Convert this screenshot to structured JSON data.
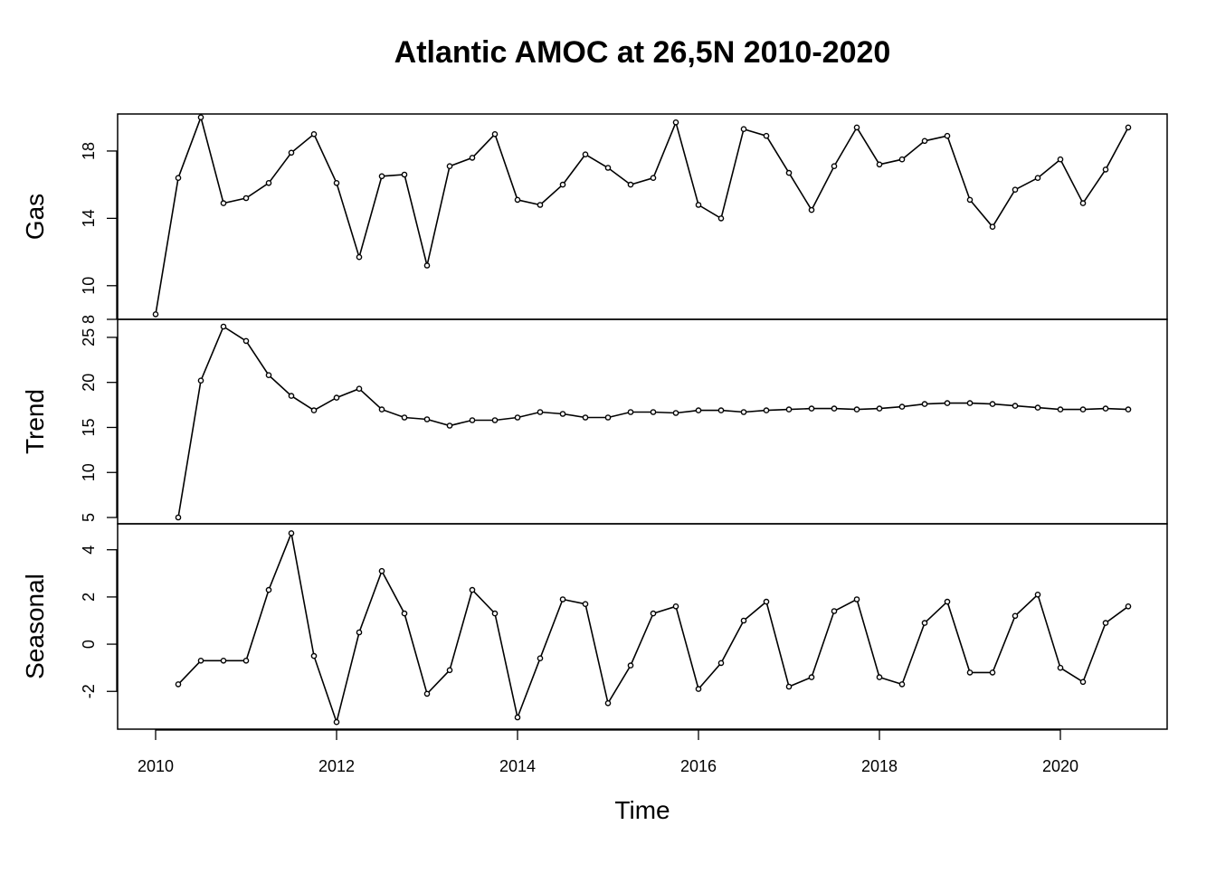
{
  "chart_data": {
    "type": "line",
    "title": "Atlantic AMOC at 26,5N 2010-2020",
    "xlabel": "Time",
    "x_ticks": [
      2010,
      2012,
      2014,
      2016,
      2018,
      2020
    ],
    "x": [
      2010.0,
      2010.25,
      2010.5,
      2010.75,
      2011.0,
      2011.25,
      2011.5,
      2011.75,
      2012.0,
      2012.25,
      2012.5,
      2012.75,
      2013.0,
      2013.25,
      2013.5,
      2013.75,
      2014.0,
      2014.25,
      2014.5,
      2014.75,
      2015.0,
      2015.25,
      2015.5,
      2015.75,
      2016.0,
      2016.25,
      2016.5,
      2016.75,
      2017.0,
      2017.25,
      2017.5,
      2017.75,
      2018.0,
      2018.25,
      2018.5,
      2018.75,
      2019.0,
      2019.25,
      2019.5,
      2019.75,
      2020.0,
      2020.25,
      2020.5,
      2020.75
    ],
    "xlim": [
      2009.58,
      2021.18
    ],
    "panels": [
      {
        "name": "Gas",
        "ylabel": "Gas",
        "ylim": [
          8,
          20.2
        ],
        "yticks": [
          8,
          10,
          14,
          18
        ],
        "values": [
          8.3,
          16.4,
          20.0,
          14.9,
          15.2,
          16.1,
          17.9,
          19.0,
          16.1,
          11.7,
          16.5,
          16.6,
          11.2,
          17.1,
          17.6,
          19.0,
          15.1,
          14.8,
          16.0,
          17.8,
          17.0,
          16.0,
          16.4,
          19.7,
          14.8,
          14.0,
          19.3,
          18.9,
          16.7,
          14.5,
          17.1,
          19.4,
          17.2,
          17.5,
          18.6,
          18.9,
          15.1,
          13.5,
          15.7,
          16.4,
          17.5,
          14.9,
          16.9,
          19.4
        ]
      },
      {
        "name": "Trend",
        "ylabel": "Trend",
        "ylim": [
          4.3,
          27.0
        ],
        "yticks": [
          5,
          10,
          15,
          20,
          25
        ],
        "values": [
          null,
          5.0,
          20.2,
          26.2,
          24.6,
          20.8,
          18.5,
          16.9,
          18.3,
          19.3,
          17.0,
          16.1,
          15.9,
          15.2,
          15.8,
          15.8,
          16.1,
          16.7,
          16.5,
          16.1,
          16.1,
          16.7,
          16.7,
          16.6,
          16.9,
          16.9,
          16.7,
          16.9,
          17.0,
          17.1,
          17.1,
          17.0,
          17.1,
          17.3,
          17.6,
          17.7,
          17.7,
          17.6,
          17.4,
          17.2,
          17.0,
          17.0,
          17.1,
          17.0
        ]
      },
      {
        "name": "Seasonal",
        "ylabel": "Seasonal",
        "ylim": [
          -3.6,
          5.1
        ],
        "yticks": [
          -2,
          0,
          2,
          4
        ],
        "values": [
          null,
          -1.7,
          -0.7,
          -0.7,
          -0.7,
          2.3,
          4.7,
          -0.5,
          -3.3,
          0.5,
          3.1,
          1.3,
          -2.1,
          -1.1,
          2.3,
          1.3,
          -3.1,
          -0.6,
          1.9,
          1.7,
          -2.5,
          -0.9,
          1.3,
          1.6,
          -1.9,
          -0.8,
          1.0,
          1.8,
          -1.8,
          -1.4,
          1.4,
          1.9,
          -1.4,
          -1.7,
          0.9,
          1.8,
          -1.2,
          -1.2,
          1.2,
          2.1,
          -1.0,
          -1.6,
          0.9,
          1.6
        ]
      }
    ]
  }
}
